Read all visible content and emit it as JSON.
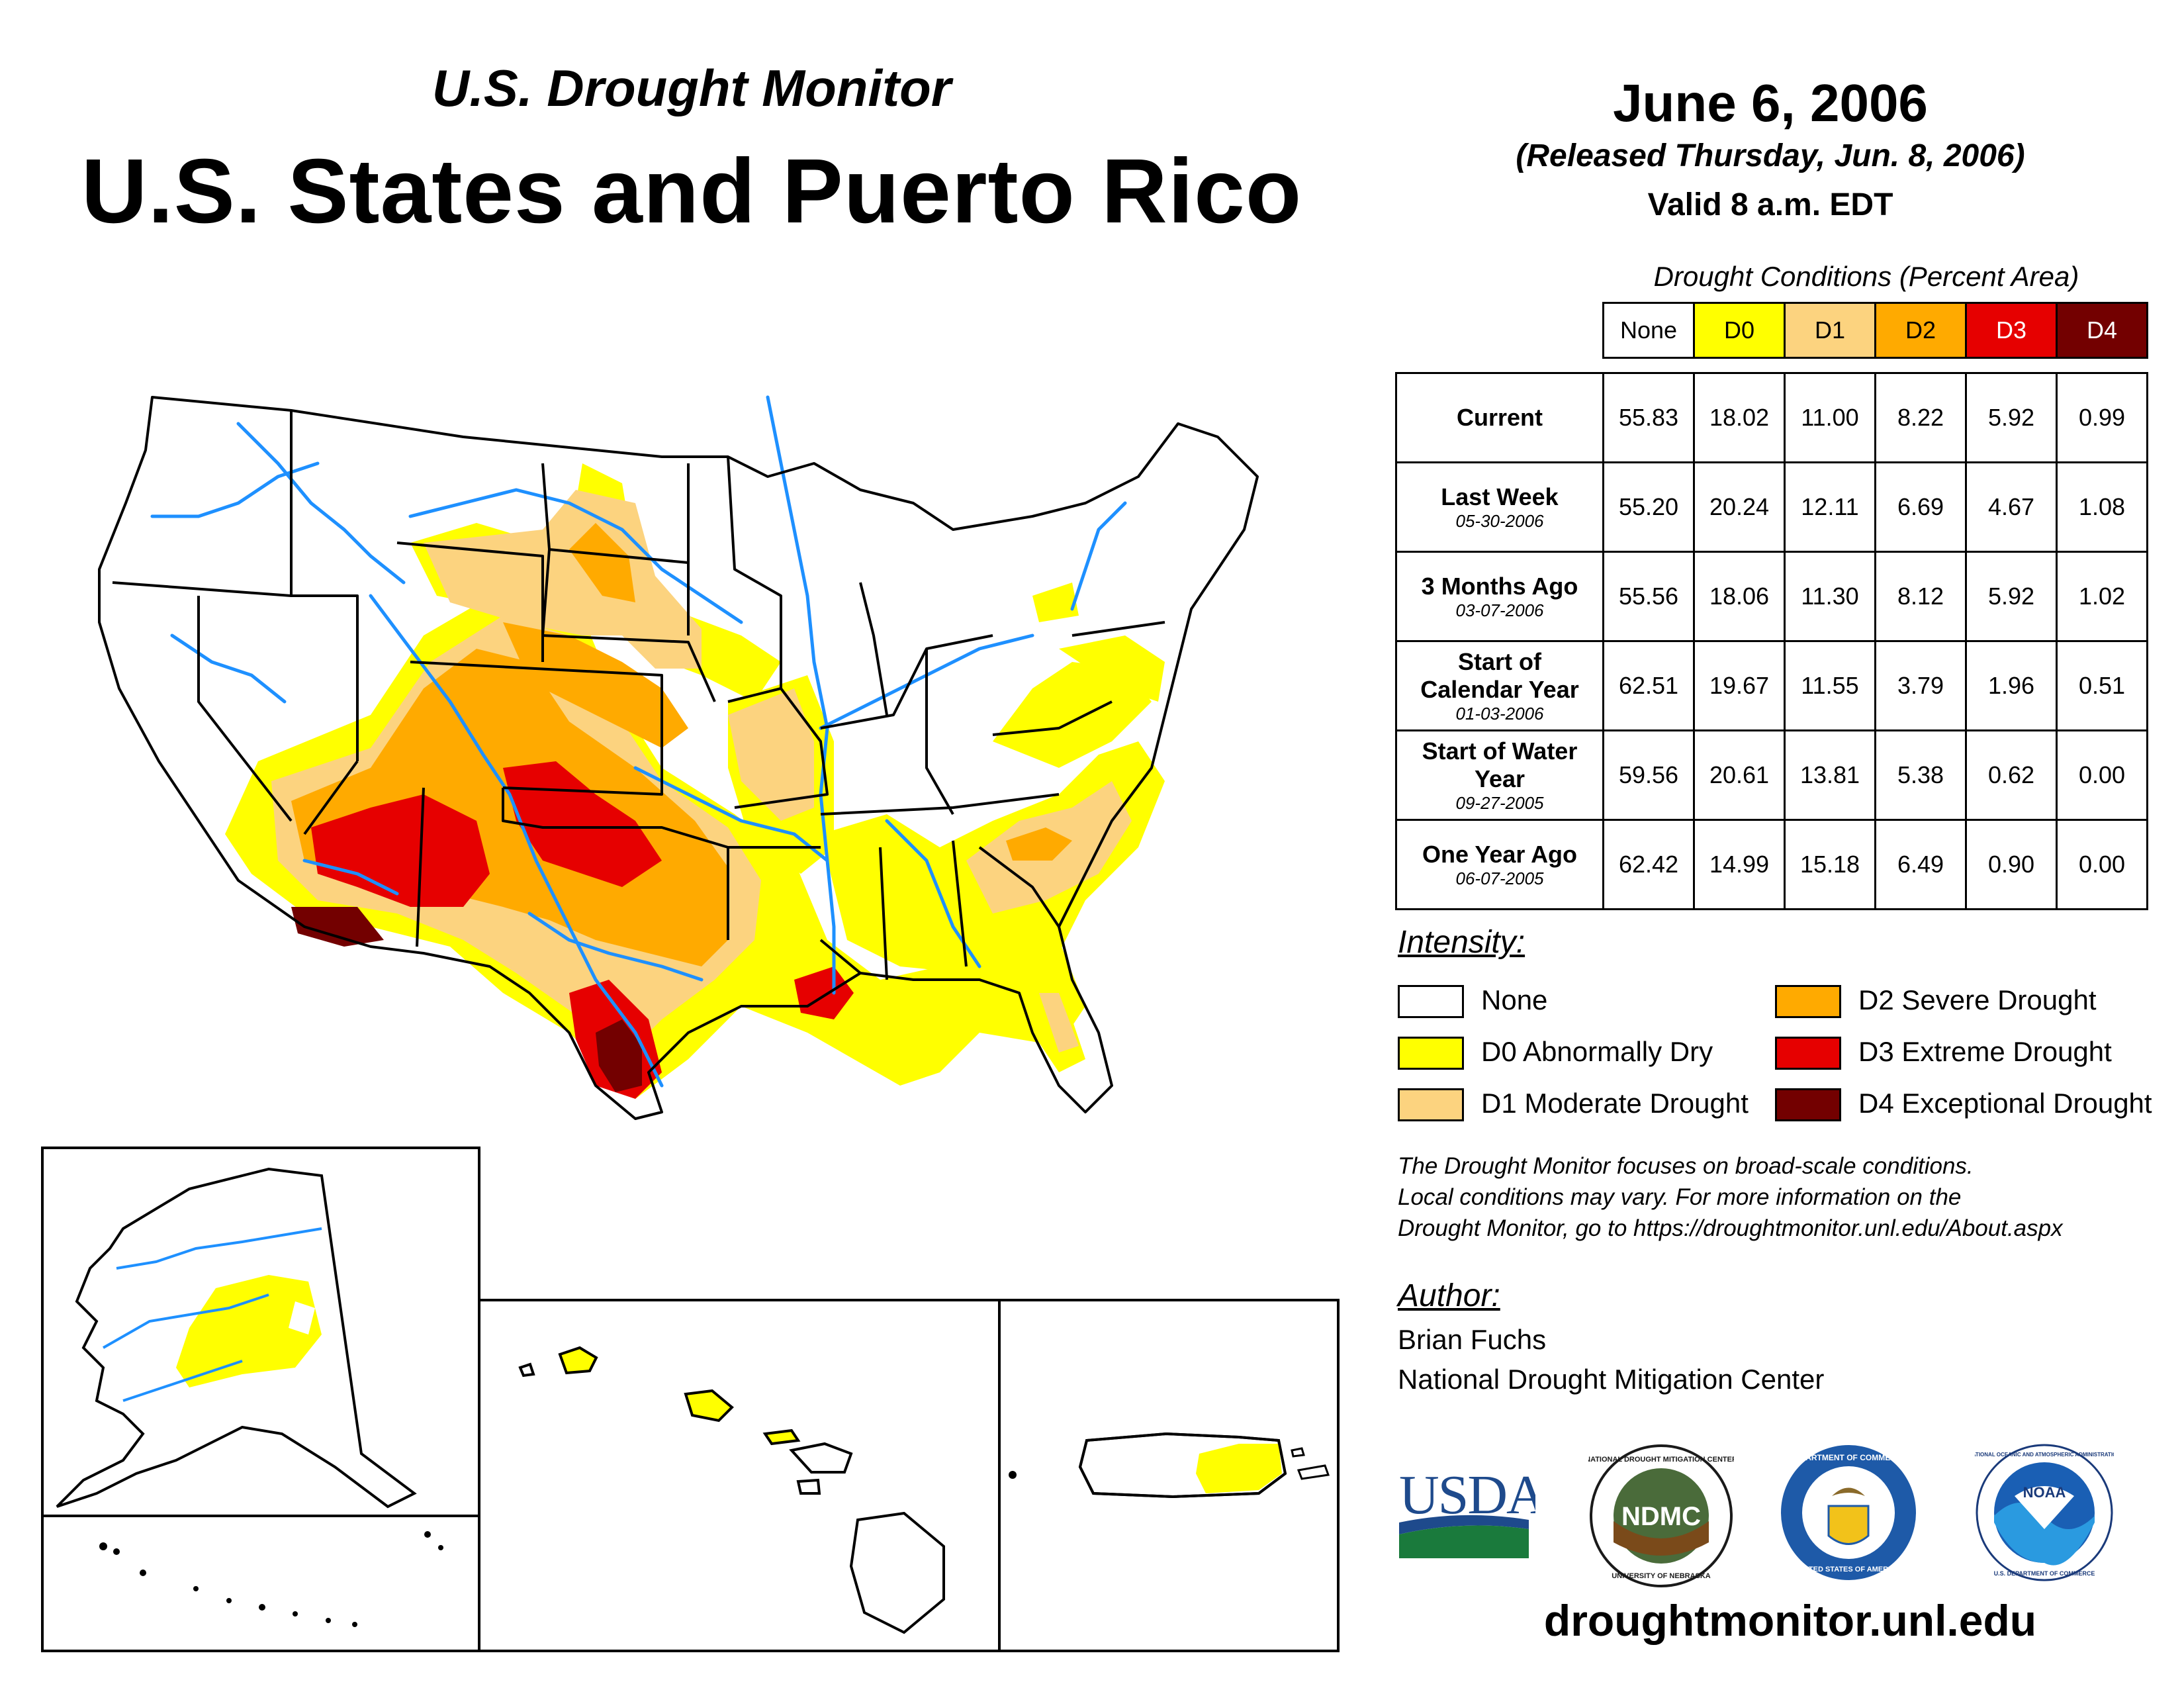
{
  "header": {
    "supertitle": "U.S. Drought Monitor",
    "title": "U.S. States and Puerto Rico",
    "date": "June 6, 2006",
    "released": "(Released Thursday, Jun. 8, 2006)",
    "valid": "Valid 8 a.m. EDT"
  },
  "table": {
    "caption": "Drought Conditions (Percent Area)",
    "columns": [
      "None",
      "D0",
      "D1",
      "D2",
      "D3",
      "D4"
    ],
    "column_colors": [
      "#ffffff",
      "#ffff00",
      "#fcd37f",
      "#ffaa00",
      "#e60000",
      "#730000"
    ],
    "rows": [
      {
        "label": "Current",
        "date": "",
        "values": [
          "55.83",
          "18.02",
          "11.00",
          "8.22",
          "5.92",
          "0.99"
        ]
      },
      {
        "label": "Last Week",
        "date": "05-30-2006",
        "values": [
          "55.20",
          "20.24",
          "12.11",
          "6.69",
          "4.67",
          "1.08"
        ]
      },
      {
        "label": "3 Months Ago",
        "date": "03-07-2006",
        "values": [
          "55.56",
          "18.06",
          "11.30",
          "8.12",
          "5.92",
          "1.02"
        ]
      },
      {
        "label": "Start of Calendar Year",
        "date": "01-03-2006",
        "values": [
          "62.51",
          "19.67",
          "11.55",
          "3.79",
          "1.96",
          "0.51"
        ]
      },
      {
        "label": "Start of Water Year",
        "date": "09-27-2005",
        "values": [
          "59.56",
          "20.61",
          "13.81",
          "5.38",
          "0.62",
          "0.00"
        ]
      },
      {
        "label": "One Year Ago",
        "date": "06-07-2005",
        "values": [
          "62.42",
          "14.99",
          "15.18",
          "6.49",
          "0.90",
          "0.00"
        ]
      }
    ]
  },
  "legend": {
    "heading": "Intensity:",
    "items": [
      {
        "label": "None",
        "color": "#ffffff"
      },
      {
        "label": "D0 Abnormally Dry",
        "color": "#ffff00"
      },
      {
        "label": "D1 Moderate Drought",
        "color": "#fcd37f"
      },
      {
        "label": "D2 Severe Drought",
        "color": "#ffaa00"
      },
      {
        "label": "D3 Extreme Drought",
        "color": "#e60000"
      },
      {
        "label": "D4 Exceptional Drought",
        "color": "#730000"
      }
    ]
  },
  "note": {
    "line1": "The Drought Monitor focuses on broad-scale conditions.",
    "line2": "Local conditions may vary. For more information on the",
    "line3": "Drought Monitor, go to https://droughtmonitor.unl.edu/About.aspx"
  },
  "author": {
    "heading": "Author:",
    "name": "Brian Fuchs",
    "org": "National Drought Mitigation Center"
  },
  "logos": {
    "usda": "USDA",
    "ndmc": "NDMC",
    "ndmc_ring_top": "NATIONAL DROUGHT MITIGATION CENTER",
    "ndmc_ring_bottom": "UNIVERSITY OF NEBRASKA",
    "commerce_ring_top": "DEPARTMENT OF COMMERCE",
    "commerce_ring_bottom": "UNITED STATES OF AMERICA",
    "noaa": "NOAA",
    "noaa_ring_top": "NATIONAL OCEANIC AND ATMOSPHERIC ADMINISTRATION",
    "noaa_ring_bottom": "U.S. DEPARTMENT OF COMMERCE"
  },
  "footer": {
    "site": "droughtmonitor.unl.edu"
  },
  "map_colors": {
    "d0": "#ffff00",
    "d1": "#fcd37f",
    "d2": "#ffaa00",
    "d3": "#e60000",
    "d4": "#730000",
    "river": "#1e90ff",
    "border": "#000000"
  }
}
